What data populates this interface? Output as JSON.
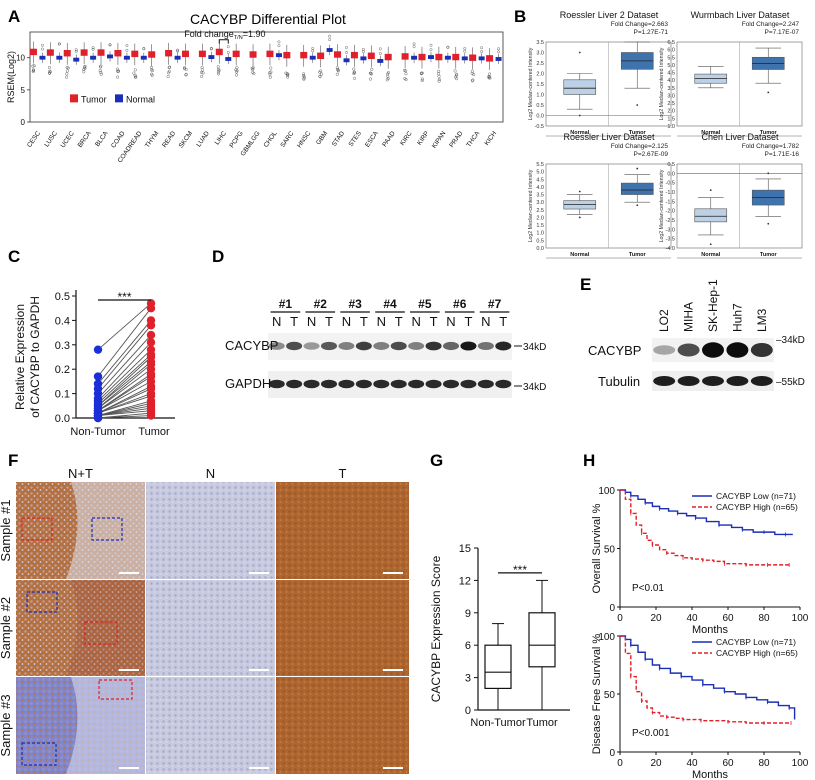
{
  "figure": {
    "letters": [
      "A",
      "B",
      "C",
      "D",
      "E",
      "F",
      "G",
      "H"
    ]
  },
  "chart_data": [
    {
      "panel": "A",
      "type": "box",
      "title": "CACYBP Differential Plot",
      "ylabel": "RSEM(Log2)",
      "ylim": [
        0,
        14
      ],
      "yticks": [
        0,
        5,
        10
      ],
      "annotation": "Fold change",
      "annotation_sub": "T/N",
      "annotation_value": "=1.90",
      "legend": [
        {
          "name": "Tumor",
          "color": "#e0202a"
        },
        {
          "name": "Normal",
          "color": "#1a2fb8"
        }
      ],
      "categories": [
        "CESC",
        "LUSC",
        "UCEC",
        "BRCA",
        "BLCA",
        "COAD",
        "COADREAD",
        "THYM",
        "READ",
        "SKCM",
        "LUAD",
        "LIHC",
        "PCPG",
        "GBMLGG",
        "CHOL",
        "SARC",
        "HNSC",
        "GBM",
        "STAD",
        "STES",
        "ESCA",
        "PAAD",
        "KIRC",
        "KIRP",
        "KIPAN",
        "PRAD",
        "THCA",
        "KICH"
      ],
      "tumor_median": [
        10.9,
        10.8,
        10.7,
        10.8,
        10.8,
        10.7,
        10.6,
        10.5,
        10.7,
        10.6,
        10.6,
        10.9,
        10.6,
        10.5,
        10.6,
        10.4,
        10.4,
        10.3,
        10.5,
        10.4,
        10.3,
        10.1,
        10.2,
        10.1,
        10.1,
        10.1,
        10.0,
        9.9
      ],
      "normal_median": [
        10.0,
        10.0,
        9.7,
        10.0,
        10.2,
        10.0,
        10.0,
        null,
        10.0,
        null,
        10.1,
        9.8,
        null,
        null,
        10.4,
        null,
        10.0,
        11.2,
        9.6,
        9.9,
        9.5,
        null,
        10.0,
        10.1,
        10.0,
        9.9,
        9.9,
        9.8
      ]
    },
    {
      "panel": "B",
      "type": "box",
      "datasets": [
        {
          "title": "Roessler Liver 2 Dataset",
          "fold": "2.663",
          "p": "P=1.27E-71",
          "ylim": [
            -0.5,
            3.5
          ],
          "yticks": [
            -0.5,
            0.0,
            0.5,
            1.0,
            1.5,
            2.0,
            2.5,
            3.0,
            3.5
          ],
          "normal": {
            "min": 0.3,
            "q1": 1.0,
            "med": 1.3,
            "q3": 1.7,
            "max": 2.0,
            "out": [
              3.0,
              0.0
            ]
          },
          "tumor": {
            "min": 1.3,
            "q1": 2.2,
            "med": 2.6,
            "q3": 3.0,
            "max": 3.5,
            "out": [
              0.5
            ]
          }
        },
        {
          "title": "Wurmbach Liver Dataset",
          "fold": "2.247",
          "p": "P=7.17E-07",
          "ylim": [
            1.0,
            6.5
          ],
          "yticks": [
            1.0,
            1.5,
            2.0,
            2.5,
            3.0,
            3.5,
            4.0,
            4.5,
            5.0,
            5.5,
            6.0,
            6.5
          ],
          "normal": {
            "min": 3.5,
            "q1": 3.8,
            "med": 4.1,
            "q3": 4.4,
            "max": 4.9,
            "out": []
          },
          "tumor": {
            "min": 3.8,
            "q1": 4.7,
            "med": 5.1,
            "q3": 5.5,
            "max": 6.1,
            "out": [
              3.2
            ]
          }
        },
        {
          "title": "Roessler Liver Dataset",
          "fold": "2.125",
          "p": "P=2.67E-09",
          "ylim": [
            0.0,
            5.5
          ],
          "yticks": [
            0.0,
            0.5,
            1.0,
            1.5,
            2.0,
            2.5,
            3.0,
            3.5,
            4.0,
            4.5,
            5.0,
            5.5
          ],
          "normal": {
            "min": 2.2,
            "q1": 2.55,
            "med": 2.85,
            "q3": 3.1,
            "max": 3.5,
            "out": [
              3.7,
              2.0
            ]
          },
          "tumor": {
            "min": 3.0,
            "q1": 3.5,
            "med": 3.8,
            "q3": 4.25,
            "max": 4.8,
            "out": [
              5.2,
              2.8
            ]
          }
        },
        {
          "title": "Chen Liver Dataset",
          "fold": "1.782",
          "p": "P=1.71E-16",
          "ylim": [
            -4.0,
            0.5
          ],
          "yticks": [
            -4.0,
            -3.5,
            -3.0,
            -2.5,
            -2.0,
            -1.5,
            -1.0,
            -0.5,
            0.0,
            0.5
          ],
          "normal": {
            "min": -3.3,
            "q1": -2.6,
            "med": -2.3,
            "q3": -1.9,
            "max": -1.3,
            "out": [
              -3.8,
              -0.9
            ]
          },
          "tumor": {
            "min": -2.3,
            "q1": -1.7,
            "med": -1.3,
            "q3": -0.9,
            "max": -0.3,
            "out": [
              0.0,
              -2.7
            ]
          }
        }
      ],
      "ylabel": "Log2 Median-centered Intensity",
      "fold_label": "Fold Change",
      "categories": [
        "Normal",
        "Tumor"
      ]
    },
    {
      "panel": "C",
      "type": "scatter",
      "ylabel": "Relative Expression\nof CACYBP to GAPDH",
      "ylim": [
        0.0,
        0.5
      ],
      "yticks": [
        "0.0",
        "0.1",
        "0.2",
        "0.3",
        "0.4",
        "0.5"
      ],
      "categories": [
        "Non-Tumor",
        "Tumor"
      ],
      "significance": "***",
      "pairs": [
        [
          0.28,
          0.47
        ],
        [
          0.17,
          0.45
        ],
        [
          0.14,
          0.4
        ],
        [
          0.12,
          0.38
        ],
        [
          0.1,
          0.34
        ],
        [
          0.08,
          0.31
        ],
        [
          0.07,
          0.28
        ],
        [
          0.06,
          0.26
        ],
        [
          0.05,
          0.25
        ],
        [
          0.05,
          0.23
        ],
        [
          0.04,
          0.22
        ],
        [
          0.04,
          0.2
        ],
        [
          0.03,
          0.18
        ],
        [
          0.03,
          0.17
        ],
        [
          0.03,
          0.15
        ],
        [
          0.02,
          0.13
        ],
        [
          0.02,
          0.12
        ],
        [
          0.02,
          0.1
        ],
        [
          0.02,
          0.09
        ],
        [
          0.01,
          0.07
        ],
        [
          0.01,
          0.06
        ],
        [
          0.01,
          0.05
        ],
        [
          0.01,
          0.04
        ],
        [
          0.01,
          0.03
        ],
        [
          0.0,
          0.02
        ],
        [
          0.0,
          0.01
        ]
      ]
    },
    {
      "panel": "G",
      "type": "box",
      "ylabel": "CACYBP Expression Score",
      "ylim": [
        0,
        15
      ],
      "yticks": [
        0,
        3,
        6,
        9,
        12,
        15
      ],
      "categories": [
        "Non-Tumor",
        "Tumor"
      ],
      "significance": "***",
      "boxes": [
        {
          "min": 0,
          "q1": 2,
          "med": 3.5,
          "q3": 6,
          "max": 8
        },
        {
          "min": 0,
          "q1": 4,
          "med": 6,
          "q3": 9,
          "max": 12
        }
      ]
    },
    {
      "panel": "H",
      "type": "line",
      "xlabel": "Months",
      "xticks": [
        0,
        20,
        40,
        60,
        80,
        100
      ],
      "yticks": [
        0,
        50,
        100
      ],
      "plots": [
        {
          "ylabel": "Overall Survival %",
          "pvalue": "P<0.01",
          "series": [
            {
              "name": "CACYBP Low (n=71)",
              "color": "#1a2fb8",
              "style": "solid",
              "x": [
                0,
                3,
                6,
                10,
                14,
                18,
                22,
                27,
                32,
                37,
                42,
                48,
                55,
                62,
                68,
                74,
                80,
                86,
                92,
                96
              ],
              "y": [
                100,
                98,
                95,
                92,
                89,
                86,
                84,
                82,
                80,
                78,
                76,
                73,
                70,
                68,
                66,
                64,
                64,
                62,
                62,
                62
              ]
            },
            {
              "name": "CACYBP High (n=65)",
              "color": "#e0202a",
              "style": "dashed",
              "x": [
                0,
                3,
                6,
                9,
                12,
                15,
                18,
                22,
                26,
                30,
                35,
                40,
                46,
                52,
                58,
                64,
                70,
                76,
                82,
                88,
                94
              ],
              "y": [
                100,
                92,
                80,
                70,
                63,
                57,
                53,
                49,
                46,
                44,
                42,
                41,
                40,
                39,
                37,
                37,
                36,
                36,
                36,
                36,
                36
              ]
            }
          ]
        },
        {
          "ylabel": "Disease Free Survival %",
          "pvalue": "P<0.001",
          "series": [
            {
              "name": "CACYBP Low (n=71)",
              "color": "#1a2fb8",
              "style": "solid",
              "x": [
                0,
                3,
                6,
                10,
                14,
                18,
                22,
                28,
                34,
                40,
                46,
                52,
                58,
                64,
                70,
                76,
                82,
                88,
                94,
                97
              ],
              "y": [
                100,
                97,
                92,
                86,
                80,
                75,
                72,
                68,
                65,
                62,
                58,
                55,
                52,
                50,
                47,
                45,
                43,
                40,
                38,
                28
              ]
            },
            {
              "name": "CACYBP High (n=65)",
              "color": "#e0202a",
              "style": "dashed",
              "x": [
                0,
                3,
                6,
                9,
                12,
                15,
                18,
                22,
                26,
                30,
                35,
                40,
                45,
                50,
                60,
                70,
                80,
                90,
                95
              ],
              "y": [
                100,
                85,
                65,
                52,
                44,
                38,
                34,
                31,
                30,
                29,
                28,
                28,
                27,
                27,
                26,
                25,
                25,
                25,
                25
              ]
            }
          ]
        }
      ]
    }
  ],
  "panelD": {
    "samples": [
      "#1",
      "#2",
      "#3",
      "#4",
      "#5",
      "#6",
      "#7"
    ],
    "lanes": [
      "N",
      "T"
    ],
    "rows": [
      "CACYBP",
      "GAPDH"
    ],
    "markers": [
      "34kD",
      "34kD"
    ],
    "intensity_cacybp": [
      0.45,
      0.7,
      0.4,
      0.65,
      0.5,
      0.75,
      0.5,
      0.7,
      0.5,
      0.8,
      0.6,
      0.9,
      0.55,
      0.85
    ]
  },
  "panelE": {
    "lanes": [
      "LO2",
      "MIHA",
      "SK-Hep-1",
      "Huh7",
      "LM3"
    ],
    "rows": [
      "CACYBP",
      "Tubulin"
    ],
    "markers": [
      "34kD",
      "55kD"
    ],
    "intensity_cacybp": [
      0.35,
      0.7,
      0.95,
      0.95,
      0.8
    ]
  },
  "panelF": {
    "columns": [
      "N+T",
      "N",
      "T"
    ],
    "rows": [
      "Sample #1",
      "Sample #2",
      "Sample #3"
    ]
  }
}
